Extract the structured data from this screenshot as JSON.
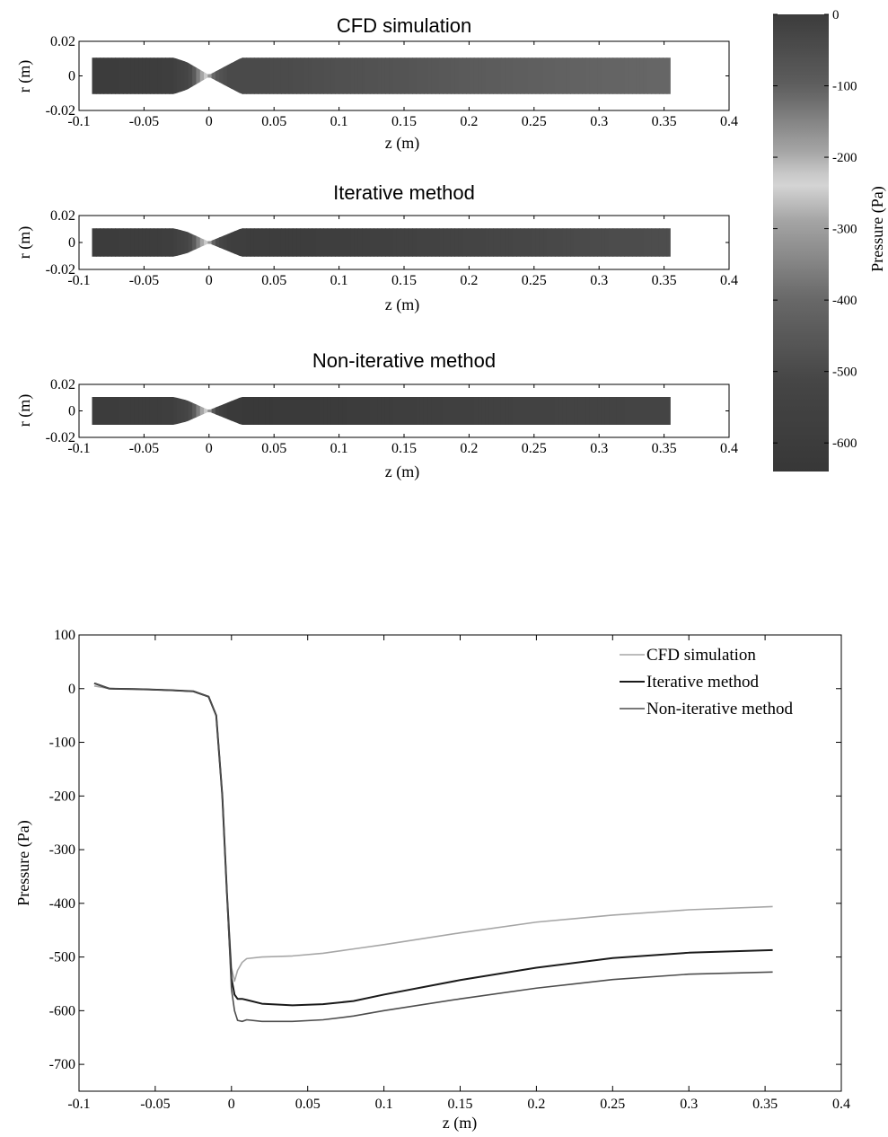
{
  "chart_data": [
    {
      "type": "heatmap",
      "title": "CFD simulation",
      "xlabel": "z (m)",
      "ylabel": "r (m)",
      "xlim": [
        -0.1,
        0.4
      ],
      "ylim": [
        -0.02,
        0.02
      ],
      "xticks": [
        "-0.1",
        "-0.05",
        "0",
        "0.05",
        "0.1",
        "0.15",
        "0.2",
        "0.25",
        "0.3",
        "0.35",
        "0.4"
      ],
      "yticks": [
        "-0.02",
        "0",
        "0.02"
      ],
      "z": [
        -0.09,
        -0.06,
        -0.03,
        -0.015,
        -0.005,
        0.0,
        0.005,
        0.015,
        0.03,
        0.06,
        0.1,
        0.15,
        0.2,
        0.25,
        0.3,
        0.355
      ],
      "pressure": [
        0,
        -2,
        -5,
        -30,
        -200,
        -300,
        -450,
        -500,
        -500,
        -495,
        -480,
        -465,
        -445,
        -430,
        -415,
        -405
      ]
    },
    {
      "type": "heatmap",
      "title": "Iterative method",
      "xlabel": "z (m)",
      "ylabel": "r (m)",
      "xlim": [
        -0.1,
        0.4
      ],
      "ylim": [
        -0.02,
        0.02
      ],
      "xticks": [
        "-0.1",
        "-0.05",
        "0",
        "0.05",
        "0.1",
        "0.15",
        "0.2",
        "0.25",
        "0.3",
        "0.35",
        "0.4"
      ],
      "yticks": [
        "-0.02",
        "0",
        "0.02"
      ],
      "z": [
        -0.09,
        -0.06,
        -0.03,
        -0.015,
        -0.005,
        0.0,
        0.005,
        0.015,
        0.03,
        0.06,
        0.1,
        0.15,
        0.2,
        0.25,
        0.3,
        0.355
      ],
      "pressure": [
        0,
        -2,
        -5,
        -30,
        -200,
        -300,
        -480,
        -575,
        -585,
        -590,
        -580,
        -555,
        -530,
        -510,
        -495,
        -488
      ]
    },
    {
      "type": "heatmap",
      "title": "Non-iterative method",
      "xlabel": "z (m)",
      "ylabel": "r (m)",
      "xlim": [
        -0.1,
        0.4
      ],
      "ylim": [
        -0.02,
        0.02
      ],
      "xticks": [
        "-0.1",
        "-0.05",
        "0",
        "0.05",
        "0.1",
        "0.15",
        "0.2",
        "0.25",
        "0.3",
        "0.35",
        "0.4"
      ],
      "yticks": [
        "-0.02",
        "0",
        "0.02"
      ],
      "z": [
        -0.09,
        -0.06,
        -0.03,
        -0.015,
        -0.005,
        0.0,
        0.005,
        0.015,
        0.03,
        0.06,
        0.1,
        0.15,
        0.2,
        0.25,
        0.3,
        0.355
      ],
      "pressure": [
        0,
        -2,
        -5,
        -30,
        -200,
        -300,
        -520,
        -615,
        -620,
        -618,
        -605,
        -580,
        -560,
        -545,
        -535,
        -530
      ]
    },
    {
      "type": "colorbar",
      "label": "Pressure (Pa)",
      "range": [
        -640,
        0
      ],
      "ticks": [
        "0",
        "-100",
        "-200",
        "-300",
        "-400",
        "-500",
        "-600"
      ],
      "tick_values": [
        0,
        -100,
        -200,
        -300,
        -400,
        -500,
        -600
      ]
    },
    {
      "type": "line",
      "xlabel": "z (m)",
      "ylabel": "Pressure (Pa)",
      "xlim": [
        -0.1,
        0.4
      ],
      "ylim": [
        -750,
        100
      ],
      "xticks": [
        "-0.1",
        "-0.05",
        "0",
        "0.05",
        "0.1",
        "0.15",
        "0.2",
        "0.25",
        "0.3",
        "0.35",
        "0.4"
      ],
      "yticks": [
        "100",
        "0",
        "-100",
        "-200",
        "-300",
        "-400",
        "-500",
        "-600",
        "-700"
      ],
      "legend_position": "top-right",
      "series": [
        {
          "name": "CFD simulation",
          "color": "#a6a6a6",
          "x": [
            -0.09,
            -0.08,
            -0.06,
            -0.04,
            -0.025,
            -0.015,
            -0.01,
            -0.006,
            -0.003,
            0.0,
            0.002,
            0.004,
            0.007,
            0.01,
            0.02,
            0.04,
            0.06,
            0.08,
            0.1,
            0.15,
            0.2,
            0.25,
            0.3,
            0.355
          ],
          "y": [
            5,
            0,
            -1,
            -3,
            -5,
            -15,
            -50,
            -200,
            -380,
            -520,
            -545,
            -525,
            -510,
            -503,
            -500,
            -498,
            -493,
            -485,
            -477,
            -455,
            -435,
            -422,
            -412,
            -406
          ]
        },
        {
          "name": "Iterative method",
          "color": "#1a1a1a",
          "x": [
            -0.09,
            -0.08,
            -0.06,
            -0.04,
            -0.025,
            -0.015,
            -0.01,
            -0.006,
            -0.003,
            0.0,
            0.002,
            0.004,
            0.007,
            0.01,
            0.02,
            0.04,
            0.06,
            0.08,
            0.1,
            0.15,
            0.2,
            0.25,
            0.3,
            0.355
          ],
          "y": [
            10,
            0,
            -1,
            -3,
            -5,
            -15,
            -50,
            -200,
            -380,
            -540,
            -570,
            -578,
            -578,
            -580,
            -587,
            -590,
            -588,
            -582,
            -570,
            -543,
            -520,
            -502,
            -492,
            -487
          ]
        },
        {
          "name": "Non-iterative method",
          "color": "#4d4d4d",
          "x": [
            -0.09,
            -0.08,
            -0.06,
            -0.04,
            -0.025,
            -0.015,
            -0.01,
            -0.006,
            -0.003,
            0.0,
            0.002,
            0.004,
            0.007,
            0.01,
            0.02,
            0.04,
            0.06,
            0.08,
            0.1,
            0.15,
            0.2,
            0.25,
            0.3,
            0.355
          ],
          "y": [
            10,
            0,
            -1,
            -3,
            -5,
            -15,
            -50,
            -200,
            -380,
            -560,
            -600,
            -618,
            -620,
            -617,
            -620,
            -620,
            -617,
            -610,
            -600,
            -578,
            -558,
            -542,
            -532,
            -528
          ]
        }
      ]
    }
  ]
}
